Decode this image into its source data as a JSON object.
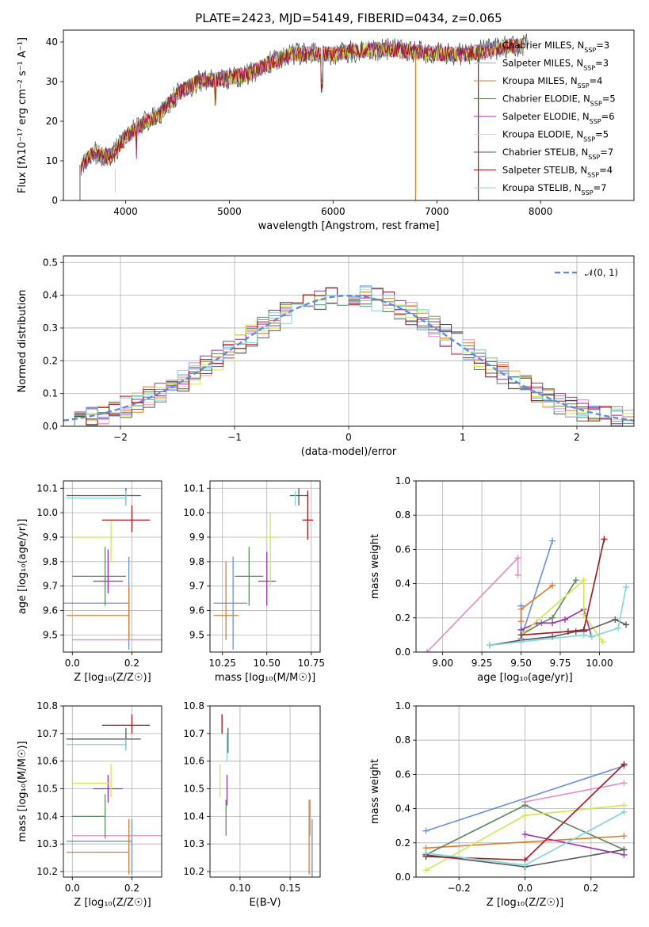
{
  "figure_title": "PLATE=2423, MJD=54149, FIBERID=0434, z=0.065",
  "colors": [
    "#6a8fdc",
    "#e58bc2",
    "#e07a2a",
    "#5a8a5e",
    "#9a2fae",
    "#cfe84f",
    "#585858",
    "#a3161a",
    "#7fd5d8"
  ],
  "chart_data": [
    {
      "id": "spectrum",
      "type": "line",
      "title": "PLATE=2423, MJD=54149, FIBERID=0434, z=0.065",
      "xlabel": "wavelength [Angstrom, rest frame]",
      "ylabel": "Flux [fλ10⁻¹⁷ erg cm⁻² s⁻¹ A⁻¹]",
      "xlim": [
        3400,
        8900
      ],
      "ylim": [
        0,
        43
      ],
      "xticks": [
        "4000",
        "5000",
        "6000",
        "7000",
        "8000"
      ],
      "yticks": [
        "0",
        "10",
        "20",
        "30",
        "40"
      ],
      "legend_position": "right",
      "continuum": {
        "x": [
          3560,
          3700,
          3850,
          4000,
          4200,
          4300,
          4500,
          4700,
          5000,
          5200,
          5400,
          5600,
          5800,
          6000,
          6300,
          6600,
          7000,
          7300,
          7500,
          7700,
          7850
        ],
        "y": [
          9,
          12,
          11,
          16,
          20,
          21,
          27,
          30,
          31,
          32,
          35,
          37,
          37,
          37,
          38,
          38,
          37,
          37,
          38,
          39,
          39
        ]
      },
      "legend": [
        {
          "name": "Chabrier MILES",
          "nssp": "3"
        },
        {
          "name": "Salpeter MILES",
          "nssp": "3"
        },
        {
          "name": "Kroupa MILES",
          "nssp": "4"
        },
        {
          "name": "Chabrier ELODIE",
          "nssp": "5"
        },
        {
          "name": "Salpeter ELODIE",
          "nssp": "6"
        },
        {
          "name": "Kroupa ELODIE",
          "nssp": "5"
        },
        {
          "name": "Chabrier STELIB",
          "nssp": "7"
        },
        {
          "name": "Salpeter STELIB",
          "nssp": "4"
        },
        {
          "name": "Kroupa STELIB",
          "nssp": "7"
        }
      ]
    },
    {
      "id": "residuals",
      "type": "histogram",
      "xlabel": "(data-model)/error",
      "ylabel": "Normed distribution",
      "xlim": [
        -2.5,
        2.5
      ],
      "ylim": [
        0,
        0.52
      ],
      "xticks": [
        "−2",
        "−1",
        "0",
        "1",
        "2"
      ],
      "yticks": [
        "0.0",
        "0.1",
        "0.2",
        "0.3",
        "0.4",
        "0.5"
      ],
      "grid": true,
      "legend": [
        {
          "name": "𝒩(0, 1)"
        }
      ],
      "legend_position": "top-right"
    },
    {
      "id": "age-vs-Z",
      "type": "scatter-errorbar",
      "xlabel": "Z [log₁₀(Z/Z☉)]",
      "ylabel": "age  [log₁₀(age/yr)]",
      "xlim": [
        -0.03,
        0.3
      ],
      "ylim": [
        9.43,
        10.13
      ],
      "xticks": [
        "0.0",
        "0.2"
      ],
      "yticks": [
        "9.5",
        "9.6",
        "9.7",
        "9.8",
        "9.9",
        "10.0",
        "10.1"
      ],
      "grid": true,
      "points": [
        {
          "x": 0.19,
          "y": 9.63,
          "ex": [
            0.22,
            0.0
          ],
          "ey": [
            0.19,
            0.19
          ]
        },
        {
          "x": 0.2,
          "y": 9.48,
          "ex": [
            0.2,
            0.1
          ],
          "ey": [
            0.0,
            0.0
          ]
        },
        {
          "x": 0.19,
          "y": 9.58,
          "ex": [
            0.21,
            0.0
          ],
          "ey": [
            0.1,
            0.12
          ]
        },
        {
          "x": 0.11,
          "y": 9.74,
          "ex": [
            0.11,
            0.07
          ],
          "ey": [
            0.12,
            0.12
          ]
        },
        {
          "x": 0.12,
          "y": 9.72,
          "ex": [
            0.05,
            0.05
          ],
          "ey": [
            0.05,
            0.13
          ]
        },
        {
          "x": 0.13,
          "y": 9.9,
          "ex": [
            0.13,
            0.0
          ],
          "ey": [
            0.1,
            0.07
          ]
        },
        {
          "x": 0.18,
          "y": 10.07,
          "ex": [
            0.2,
            0.05
          ],
          "ey": [
            0.04,
            0.03
          ]
        },
        {
          "x": 0.2,
          "y": 9.97,
          "ex": [
            0.1,
            0.06
          ],
          "ey": [
            0.05,
            0.06
          ]
        },
        {
          "x": 0.18,
          "y": 10.06,
          "ex": [
            0.2,
            0.0
          ],
          "ey": [
            0.03,
            0.03
          ]
        }
      ]
    },
    {
      "id": "age-vs-mass",
      "type": "scatter-errorbar",
      "xlabel": "mass [log₁₀(M/M☉)]",
      "ylabel": "",
      "xlim": [
        10.18,
        10.8
      ],
      "ylim": [
        9.43,
        10.13
      ],
      "xticks": [
        "10.25",
        "10.50",
        "10.75"
      ],
      "yticks": [
        "9.5",
        "9.6",
        "9.7",
        "9.8",
        "9.9",
        "10.0",
        "10.1"
      ],
      "grid": true,
      "points": [
        {
          "x": 10.31,
          "y": 9.63,
          "ex": [
            0.11,
            0.08
          ],
          "ey": [
            0.19,
            0.19
          ]
        },
        {
          "x": 10.33,
          "y": 9.48,
          "ex": [
            0.0,
            0.0
          ],
          "ey": [
            0.0,
            0.0
          ]
        },
        {
          "x": 10.27,
          "y": 9.58,
          "ex": [
            0.07,
            0.07
          ],
          "ey": [
            0.1,
            0.22
          ]
        },
        {
          "x": 10.4,
          "y": 9.74,
          "ex": [
            0.08,
            0.08
          ],
          "ey": [
            0.12,
            0.12
          ]
        },
        {
          "x": 10.5,
          "y": 9.72,
          "ex": [
            0.05,
            0.05
          ],
          "ey": [
            0.1,
            0.12
          ]
        },
        {
          "x": 10.52,
          "y": 9.9,
          "ex": [
            0.05,
            0.05
          ],
          "ey": [
            0.2,
            0.1
          ]
        },
        {
          "x": 10.68,
          "y": 10.07,
          "ex": [
            0.05,
            0.05
          ],
          "ey": [
            0.04,
            0.03
          ]
        },
        {
          "x": 10.73,
          "y": 9.97,
          "ex": [
            0.03,
            0.03
          ],
          "ey": [
            0.08,
            0.12
          ]
        },
        {
          "x": 10.66,
          "y": 10.06,
          "ex": [
            0.0,
            0.0
          ],
          "ey": [
            0.03,
            0.03
          ]
        }
      ]
    },
    {
      "id": "weight-vs-age",
      "type": "line",
      "xlabel": "age  [log₁₀(age/yr)]",
      "ylabel": "mass weight",
      "xlim": [
        8.83,
        10.22
      ],
      "ylim": [
        0,
        1
      ],
      "xticks": [
        "9.00",
        "9.25",
        "9.50",
        "9.75",
        "10.00"
      ],
      "yticks": [
        "0.0",
        "0.2",
        "0.4",
        "0.6",
        "0.8",
        "1.0"
      ],
      "grid": true,
      "series": [
        {
          "x": [
            9.5,
            9.5,
            9.7
          ],
          "y": [
            0.27,
            0.08,
            0.65
          ]
        },
        {
          "x": [
            8.9,
            9.48,
            9.48
          ],
          "y": [
            0.0,
            0.55,
            0.45
          ]
        },
        {
          "x": [
            9.5,
            9.5,
            9.7
          ],
          "y": [
            0.18,
            0.25,
            0.39
          ]
        },
        {
          "x": [
            9.5,
            9.63,
            9.7,
            9.85
          ],
          "y": [
            0.1,
            0.17,
            0.2,
            0.42
          ]
        },
        {
          "x": [
            9.5,
            9.6,
            9.7,
            9.78,
            9.9,
            9.95
          ],
          "y": [
            0.13,
            0.17,
            0.17,
            0.19,
            0.25,
            0.09
          ]
        },
        {
          "x": [
            9.5,
            9.9,
            9.9,
            10.02
          ],
          "y": [
            0.1,
            0.42,
            0.22,
            0.06
          ]
        },
        {
          "x": [
            9.3,
            9.5,
            9.7,
            9.85,
            9.9,
            10.1,
            10.17
          ],
          "y": [
            0.04,
            0.07,
            0.09,
            0.12,
            0.12,
            0.19,
            0.16
          ]
        },
        {
          "x": [
            9.5,
            9.8,
            9.9,
            10.03
          ],
          "y": [
            0.1,
            0.12,
            0.13,
            0.66
          ]
        },
        {
          "x": [
            9.3,
            9.5,
            9.9,
            9.95,
            10.12,
            10.17
          ],
          "y": [
            0.04,
            0.06,
            0.1,
            0.09,
            0.14,
            0.38
          ]
        }
      ]
    },
    {
      "id": "mass-vs-Z",
      "type": "scatter-errorbar",
      "xlabel": "Z [log₁₀(Z/Z☉)]",
      "ylabel": "mass [log₁₀(M/M☉)]",
      "xlim": [
        -0.03,
        0.3
      ],
      "ylim": [
        10.18,
        10.8
      ],
      "xticks": [
        "0.0",
        "0.2"
      ],
      "yticks": [
        "10.2",
        "10.3",
        "10.4",
        "10.5",
        "10.6",
        "10.7",
        "10.8"
      ],
      "grid": true,
      "points": [
        {
          "x": 0.2,
          "y": 10.31,
          "ex": [
            0.22,
            0.0
          ],
          "ey": [
            0.12,
            0.08
          ]
        },
        {
          "x": 0.2,
          "y": 10.33,
          "ex": [
            0.2,
            0.1
          ],
          "ey": [
            0.0,
            0.0
          ]
        },
        {
          "x": 0.19,
          "y": 10.27,
          "ex": [
            0.21,
            0.0
          ],
          "ey": [
            0.08,
            0.12
          ]
        },
        {
          "x": 0.11,
          "y": 10.4,
          "ex": [
            0.11,
            0.0
          ],
          "ey": [
            0.08,
            0.08
          ]
        },
        {
          "x": 0.12,
          "y": 10.5,
          "ex": [
            0.05,
            0.05
          ],
          "ey": [
            0.05,
            0.05
          ]
        },
        {
          "x": 0.13,
          "y": 10.52,
          "ex": [
            0.13,
            0.0
          ],
          "ey": [
            0.05,
            0.07
          ]
        },
        {
          "x": 0.18,
          "y": 10.68,
          "ex": [
            0.2,
            0.05
          ],
          "ey": [
            0.04,
            0.04
          ]
        },
        {
          "x": 0.2,
          "y": 10.73,
          "ex": [
            0.1,
            0.06
          ],
          "ey": [
            0.03,
            0.04
          ]
        },
        {
          "x": 0.18,
          "y": 10.66,
          "ex": [
            0.2,
            0.0
          ],
          "ey": [
            0.02,
            0.02
          ]
        }
      ]
    },
    {
      "id": "mass-vs-ebv",
      "type": "scatter-errorbar",
      "xlabel": "E(B-V)",
      "ylabel": "",
      "xlim": [
        0.07,
        0.18
      ],
      "ylim": [
        10.18,
        10.8
      ],
      "xticks": [
        "0.10",
        "0.15"
      ],
      "yticks": [
        "10.2",
        "10.3",
        "10.4",
        "10.5",
        "10.6",
        "10.7",
        "10.8"
      ],
      "grid": true,
      "points": [
        {
          "x": 0.172,
          "y": 10.29,
          "ey": [
            0.11,
            0.1
          ]
        },
        {
          "x": 0.17,
          "y": 10.33,
          "ey": [
            0.0,
            0.13
          ]
        },
        {
          "x": 0.169,
          "y": 10.27,
          "ey": [
            0.08,
            0.19
          ]
        },
        {
          "x": 0.086,
          "y": 10.4,
          "ey": [
            0.07,
            0.06
          ]
        },
        {
          "x": 0.087,
          "y": 10.5,
          "ey": [
            0.06,
            0.05
          ]
        },
        {
          "x": 0.08,
          "y": 10.52,
          "ey": [
            0.05,
            0.07
          ]
        },
        {
          "x": 0.088,
          "y": 10.68,
          "ey": [
            0.05,
            0.04
          ]
        },
        {
          "x": 0.082,
          "y": 10.73,
          "ey": [
            0.03,
            0.04
          ]
        },
        {
          "x": 0.087,
          "y": 10.66,
          "ey": [
            0.06,
            0.04
          ]
        }
      ]
    },
    {
      "id": "weight-vs-Z",
      "type": "line",
      "xlabel": "Z [log₁₀(Z/Z☉)]",
      "ylabel": "mass weight",
      "xlim": [
        -0.33,
        0.33
      ],
      "ylim": [
        0,
        1
      ],
      "xticks": [
        "−0.2",
        "0.0",
        "0.2"
      ],
      "yticks": [
        "0.0",
        "0.2",
        "0.4",
        "0.6",
        "0.8",
        "1.0"
      ],
      "grid": true,
      "series": [
        {
          "x": [
            -0.3,
            0.3
          ],
          "y": [
            0.27,
            0.65
          ]
        },
        {
          "x": [
            0.0,
            0.3
          ],
          "y": [
            0.44,
            0.55
          ]
        },
        {
          "x": [
            -0.3,
            0.3
          ],
          "y": [
            0.17,
            0.24
          ]
        },
        {
          "x": [
            -0.3,
            0.0,
            0.3
          ],
          "y": [
            0.13,
            0.42,
            0.16
          ]
        },
        {
          "x": [
            0.0,
            0.3
          ],
          "y": [
            0.25,
            0.13
          ]
        },
        {
          "x": [
            -0.3,
            0.0,
            0.3
          ],
          "y": [
            0.04,
            0.36,
            0.42
          ]
        },
        {
          "x": [
            -0.3,
            0.0,
            0.3
          ],
          "y": [
            0.13,
            0.06,
            0.16
          ]
        },
        {
          "x": [
            -0.3,
            0.0,
            0.3
          ],
          "y": [
            0.12,
            0.1,
            0.66
          ]
        },
        {
          "x": [
            -0.3,
            0.0,
            0.3
          ],
          "y": [
            0.14,
            0.07,
            0.38
          ]
        }
      ]
    }
  ]
}
